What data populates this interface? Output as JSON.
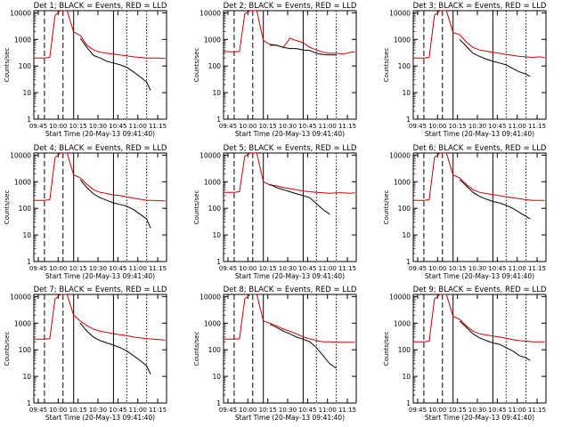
{
  "chart_data": {
    "type": "line",
    "shared": {
      "xlabel": "Start Time (20-May-13 09:41:40)",
      "ylabel": "Counts/sec",
      "x_ticks": [
        "09:45",
        "10:00",
        "10:15",
        "10:30",
        "10:45",
        "11:00",
        "11:15"
      ],
      "x_tick_values_min": [
        3.33,
        18.33,
        33.33,
        48.33,
        63.33,
        78.33,
        93.33
      ],
      "xlim_min": [
        0,
        100
      ],
      "y_ticks": [
        "1",
        "10",
        "100",
        "1000",
        "10000"
      ],
      "ylim": [
        1,
        12000
      ],
      "yscale": "log",
      "series_colors": {
        "events": "#000000",
        "lld": "#cc0000"
      }
    },
    "panels": [
      {
        "title": "Det 1; BLACK = Events, RED = LLD",
        "lld": {
          "x": [
            0,
            8,
            12,
            16,
            20,
            25,
            30,
            35,
            40,
            45,
            50,
            55,
            60,
            65,
            70,
            75,
            80,
            85,
            90,
            95,
            99
          ],
          "y": [
            200,
            200,
            210,
            8000,
            12000,
            12000,
            1900,
            1400,
            600,
            400,
            330,
            300,
            280,
            260,
            240,
            220,
            210,
            200,
            200,
            200,
            190
          ]
        },
        "events": {
          "x": [
            35,
            40,
            45,
            50,
            55,
            60,
            65,
            70,
            75,
            80,
            85,
            88
          ],
          "y": [
            1100,
            500,
            250,
            200,
            150,
            130,
            110,
            90,
            60,
            40,
            25,
            12
          ]
        }
      },
      {
        "title": "Det 2; BLACK = Events, RED = LLD",
        "lld": {
          "x": [
            0,
            8,
            12,
            16,
            20,
            25,
            30,
            35,
            40,
            45,
            50,
            55,
            60,
            65,
            70,
            75,
            80,
            85,
            90,
            95,
            99
          ],
          "y": [
            350,
            340,
            350,
            9000,
            12000,
            12000,
            900,
            650,
            600,
            500,
            1100,
            900,
            750,
            500,
            400,
            330,
            300,
            300,
            280,
            320,
            340
          ]
        },
        "events": {
          "x": [
            35,
            40,
            45,
            50,
            55,
            60,
            65,
            70,
            75,
            80,
            85
          ],
          "y": [
            600,
            600,
            500,
            450,
            450,
            400,
            380,
            300,
            270,
            260,
            260
          ]
        }
      },
      {
        "title": "Det 3; BLACK = Events, RED = LLD",
        "lld": {
          "x": [
            0,
            8,
            12,
            16,
            20,
            25,
            30,
            35,
            40,
            45,
            50,
            55,
            60,
            65,
            70,
            75,
            80,
            85,
            90,
            95,
            99
          ],
          "y": [
            200,
            200,
            210,
            8000,
            12000,
            12000,
            1800,
            1500,
            800,
            500,
            400,
            360,
            330,
            300,
            270,
            250,
            230,
            220,
            210,
            220,
            210
          ]
        },
        "events": {
          "x": [
            35,
            40,
            45,
            50,
            55,
            60,
            65,
            70,
            75,
            80,
            85,
            88
          ],
          "y": [
            1000,
            550,
            300,
            230,
            180,
            150,
            130,
            110,
            80,
            60,
            50,
            40
          ]
        }
      },
      {
        "title": "Det 4; BLACK = Events, RED = LLD",
        "lld": {
          "x": [
            0,
            8,
            12,
            16,
            20,
            25,
            30,
            35,
            40,
            45,
            50,
            55,
            60,
            65,
            70,
            75,
            80,
            85,
            90,
            95,
            99
          ],
          "y": [
            200,
            200,
            210,
            8000,
            12000,
            12000,
            1800,
            1400,
            800,
            500,
            400,
            360,
            320,
            300,
            270,
            240,
            220,
            200,
            200,
            190,
            190
          ]
        },
        "events": {
          "x": [
            35,
            40,
            45,
            50,
            55,
            60,
            65,
            70,
            75,
            80,
            85,
            88
          ],
          "y": [
            1200,
            600,
            350,
            250,
            200,
            160,
            140,
            120,
            90,
            60,
            40,
            18
          ]
        }
      },
      {
        "title": "Det 5; BLACK = Events, RED = LLD",
        "lld": {
          "x": [
            0,
            8,
            12,
            16,
            20,
            25,
            30,
            35,
            40,
            45,
            50,
            55,
            60,
            65,
            70,
            75,
            80,
            85,
            90,
            95,
            99
          ],
          "y": [
            400,
            400,
            420,
            9000,
            12000,
            12000,
            1000,
            750,
            700,
            600,
            550,
            500,
            450,
            420,
            400,
            380,
            370,
            380,
            380,
            370,
            380
          ]
        },
        "events": {
          "x": [
            35,
            40,
            45,
            50,
            55,
            60,
            65,
            70,
            75,
            80
          ],
          "y": [
            800,
            600,
            500,
            420,
            350,
            300,
            250,
            150,
            90,
            60
          ]
        }
      },
      {
        "title": "Det 6; BLACK = Events, RED = LLD",
        "lld": {
          "x": [
            0,
            8,
            12,
            16,
            20,
            25,
            30,
            35,
            40,
            45,
            50,
            55,
            60,
            65,
            70,
            75,
            80,
            85,
            90,
            95,
            99
          ],
          "y": [
            200,
            200,
            210,
            8000,
            12000,
            12000,
            1800,
            1400,
            800,
            500,
            400,
            360,
            330,
            300,
            270,
            250,
            230,
            210,
            200,
            200,
            200
          ]
        },
        "events": {
          "x": [
            35,
            40,
            45,
            50,
            55,
            60,
            65,
            70,
            75,
            80,
            85,
            88
          ],
          "y": [
            1200,
            700,
            400,
            280,
            220,
            180,
            160,
            130,
            100,
            70,
            50,
            40
          ]
        }
      },
      {
        "title": "Det 7; BLACK = Events, RED = LLD",
        "lld": {
          "x": [
            0,
            8,
            12,
            16,
            20,
            25,
            30,
            35,
            40,
            45,
            50,
            55,
            60,
            65,
            70,
            75,
            80,
            85,
            90,
            95,
            99
          ],
          "y": [
            250,
            250,
            260,
            8000,
            12000,
            12000,
            2000,
            1200,
            800,
            600,
            500,
            450,
            400,
            370,
            340,
            300,
            280,
            260,
            250,
            240,
            230
          ]
        },
        "events": {
          "x": [
            35,
            40,
            45,
            50,
            55,
            60,
            65,
            70,
            75,
            80,
            85,
            88
          ],
          "y": [
            1000,
            500,
            300,
            220,
            180,
            150,
            120,
            90,
            60,
            40,
            25,
            12
          ]
        }
      },
      {
        "title": "Det 8; BLACK = Events, RED = LLD",
        "lld": {
          "x": [
            0,
            8,
            12,
            16,
            20,
            25,
            30,
            35,
            40,
            45,
            50,
            55,
            60,
            65,
            70,
            75,
            80,
            85,
            90,
            95,
            99
          ],
          "y": [
            250,
            250,
            260,
            8000,
            12000,
            12000,
            1200,
            1000,
            800,
            600,
            500,
            400,
            300,
            260,
            220,
            200,
            200,
            190,
            190,
            190,
            190
          ]
        },
        "events": {
          "x": [
            35,
            40,
            45,
            50,
            55,
            60,
            65,
            70,
            75,
            80,
            85
          ],
          "y": [
            900,
            700,
            500,
            400,
            300,
            250,
            200,
            120,
            60,
            30,
            20
          ]
        }
      },
      {
        "title": "Det 9; BLACK = Events, RED = LLD",
        "lld": {
          "x": [
            0,
            8,
            12,
            16,
            20,
            25,
            30,
            35,
            40,
            45,
            50,
            55,
            60,
            65,
            70,
            75,
            80,
            85,
            90,
            95,
            99
          ],
          "y": [
            200,
            200,
            210,
            8000,
            12000,
            12000,
            1800,
            1400,
            800,
            500,
            400,
            360,
            330,
            300,
            270,
            240,
            220,
            210,
            200,
            200,
            200
          ]
        },
        "events": {
          "x": [
            35,
            40,
            45,
            50,
            55,
            60,
            65,
            70,
            75,
            80,
            85,
            88
          ],
          "y": [
            1200,
            700,
            400,
            280,
            220,
            180,
            160,
            120,
            90,
            60,
            50,
            40
          ]
        }
      }
    ]
  }
}
